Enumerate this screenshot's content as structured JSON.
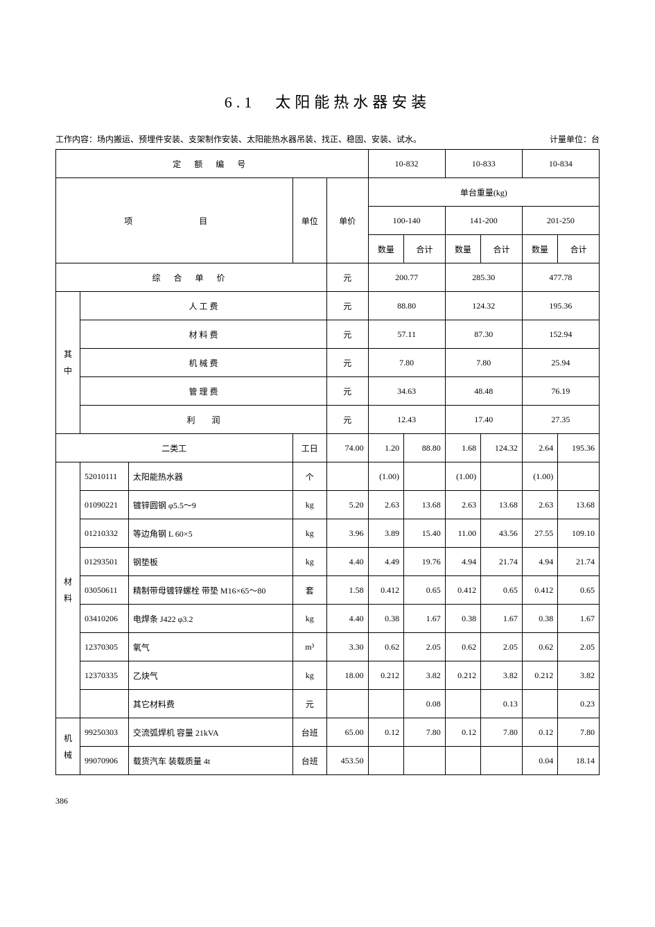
{
  "title": "6.1　太阳能热水器安装",
  "work_content_label": "工作内容：场内搬运、预埋件安装、支架制作安装、太阳能热水器吊装、找正、稳固、安装、试水。",
  "unit_label": "计量单位：台",
  "page_number": "386",
  "headers": {
    "quota_no": "定 额 编 号",
    "item": "项　　目",
    "unit": "单位",
    "price": "单价",
    "weight_group": "单台重量(kg)",
    "qty": "数量",
    "subtotal": "合计",
    "codes": [
      "10-832",
      "10-833",
      "10-834"
    ],
    "ranges": [
      "100-140",
      "141-200",
      "201-250"
    ]
  },
  "summary": {
    "composite_label": "综 合 单 价",
    "composite_unit": "元",
    "composite": [
      "200.77",
      "285.30",
      "477.78"
    ],
    "breakdown_label": "其中",
    "rows": [
      {
        "label": "人 工 费",
        "unit": "元",
        "vals": [
          "88.80",
          "124.32",
          "195.36"
        ]
      },
      {
        "label": "材 料 费",
        "unit": "元",
        "vals": [
          "57.11",
          "87.30",
          "152.94"
        ]
      },
      {
        "label": "机 械 费",
        "unit": "元",
        "vals": [
          "7.80",
          "7.80",
          "25.94"
        ]
      },
      {
        "label": "管 理 费",
        "unit": "元",
        "vals": [
          "34.63",
          "48.48",
          "76.19"
        ]
      },
      {
        "label": "利　　润",
        "unit": "元",
        "vals": [
          "12.43",
          "17.40",
          "27.35"
        ]
      }
    ]
  },
  "labor": {
    "label": "二类工",
    "unit": "工日",
    "price": "74.00",
    "cols": [
      "1.20",
      "88.80",
      "1.68",
      "124.32",
      "2.64",
      "195.36"
    ]
  },
  "materials": {
    "group_label": "材料",
    "rows": [
      {
        "code": "52010111",
        "name": "太阳能热水器",
        "unit": "个",
        "price": "",
        "c": [
          "(1.00)",
          "",
          "(1.00)",
          "",
          "(1.00)",
          ""
        ]
      },
      {
        "code": "01090221",
        "name": "镀锌圆钢 φ5.5～9",
        "unit": "kg",
        "price": "5.20",
        "c": [
          "2.63",
          "13.68",
          "2.63",
          "13.68",
          "2.63",
          "13.68"
        ]
      },
      {
        "code": "01210332",
        "name": "等边角钢 L 60×5",
        "unit": "kg",
        "price": "3.96",
        "c": [
          "3.89",
          "15.40",
          "11.00",
          "43.56",
          "27.55",
          "109.10"
        ]
      },
      {
        "code": "01293501",
        "name": "钢垫板",
        "unit": "kg",
        "price": "4.40",
        "c": [
          "4.49",
          "19.76",
          "4.94",
          "21.74",
          "4.94",
          "21.74"
        ]
      },
      {
        "code": "03050611",
        "name": "精制带母镀锌螺栓 带垫 M16×65～80",
        "unit": "套",
        "price": "1.58",
        "c": [
          "0.412",
          "0.65",
          "0.412",
          "0.65",
          "0.412",
          "0.65"
        ]
      },
      {
        "code": "03410206",
        "name": "电焊条 J422 φ3.2",
        "unit": "kg",
        "price": "4.40",
        "c": [
          "0.38",
          "1.67",
          "0.38",
          "1.67",
          "0.38",
          "1.67"
        ]
      },
      {
        "code": "12370305",
        "name": "氧气",
        "unit": "m³",
        "price": "3.30",
        "c": [
          "0.62",
          "2.05",
          "0.62",
          "2.05",
          "0.62",
          "2.05"
        ]
      },
      {
        "code": "12370335",
        "name": "乙炔气",
        "unit": "kg",
        "price": "18.00",
        "c": [
          "0.212",
          "3.82",
          "0.212",
          "3.82",
          "0.212",
          "3.82"
        ]
      },
      {
        "code": "",
        "name": "其它材料费",
        "unit": "元",
        "price": "",
        "c": [
          "",
          "0.08",
          "",
          "0.13",
          "",
          "0.23"
        ]
      }
    ]
  },
  "machinery": {
    "group_label": "机械",
    "rows": [
      {
        "code": "99250303",
        "name": "交流弧焊机 容量 21kVA",
        "unit": "台班",
        "price": "65.00",
        "c": [
          "0.12",
          "7.80",
          "0.12",
          "7.80",
          "0.12",
          "7.80"
        ]
      },
      {
        "code": "99070906",
        "name": "载货汽车 装载质量 4t",
        "unit": "台班",
        "price": "453.50",
        "c": [
          "",
          "",
          "",
          "",
          "0.04",
          "18.14"
        ]
      }
    ]
  }
}
